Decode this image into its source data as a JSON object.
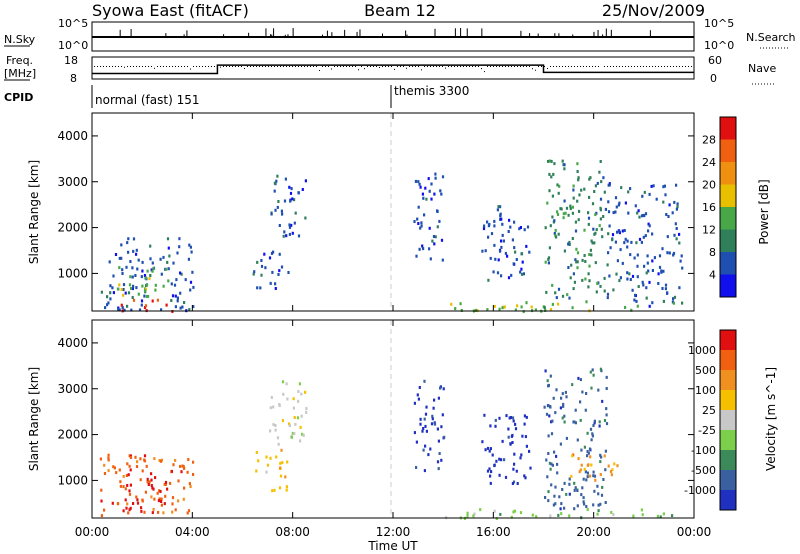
{
  "header": {
    "title": "Syowa East (fitACF)",
    "beam": "Beam 12",
    "date": "25/Nov/2009"
  },
  "strip": {
    "nsky_label": "N.Sky",
    "nsearch_label": "N.Search",
    "freq_label_1": "Freq.",
    "freq_label_2": "[MHz]",
    "nave_label": "Nave",
    "cpid_label": "CPID",
    "nsky_ticks": [
      "10^5",
      "10^0"
    ],
    "nsearch_ticks": [
      "10^5",
      "10^0"
    ],
    "freq_ticks": [
      "18",
      "8"
    ],
    "nave_ticks": [
      "60",
      "0"
    ],
    "cpid_segments": [
      {
        "label": "normal (fast) 151",
        "start_hour": 0
      },
      {
        "label": "themis 3300",
        "start_hour": 12
      }
    ],
    "freq_steps": [
      {
        "from_hour": 0,
        "to_hour": 5,
        "value": 10.5
      },
      {
        "from_hour": 5,
        "to_hour": 18,
        "value": 14.3
      },
      {
        "from_hour": 18,
        "to_hour": 24,
        "value": 11.0
      }
    ]
  },
  "colors": {
    "power": [
      "#1010ee",
      "#1f4fb0",
      "#2f7f5a",
      "#48a848",
      "#e8c000",
      "#f09010",
      "#f06010",
      "#e01010"
    ],
    "velocity": [
      "#2030c0",
      "#3a60a0",
      "#3c8a5a",
      "#7ccf4a",
      "#c8c8c8",
      "#f6c000",
      "#f09020",
      "#f06010",
      "#e01010"
    ],
    "grid": "#cccccc"
  },
  "chart_data": [
    {
      "type": "heatmap",
      "title": "",
      "xlabel": "",
      "ylabel": "Slant Range [km]",
      "x_range_hours": [
        0,
        24
      ],
      "ylim": [
        180,
        4500
      ],
      "y_ticks": [
        "1000",
        "2000",
        "3000",
        "4000"
      ],
      "colorbar_label": "Power [dB]",
      "colorbar_ticks": [
        "4",
        "8",
        "12",
        "16",
        "20",
        "24",
        "28"
      ],
      "scatter_regions": [
        {
          "x0": 0.3,
          "x1": 4.0,
          "y0": 200,
          "y1": 1800,
          "level": 1
        },
        {
          "x0": 1.0,
          "x1": 3.2,
          "y0": 200,
          "y1": 450,
          "level": 7
        },
        {
          "x0": 0.8,
          "x1": 3.0,
          "y0": 500,
          "y1": 1200,
          "level": 3
        },
        {
          "x0": 6.3,
          "x1": 7.8,
          "y0": 700,
          "y1": 1500,
          "level": 1
        },
        {
          "x0": 7.0,
          "x1": 8.5,
          "y0": 1800,
          "y1": 3200,
          "level": 1
        },
        {
          "x0": 12.8,
          "x1": 14.0,
          "y0": 1200,
          "y1": 3200,
          "level": 1
        },
        {
          "x0": 15.5,
          "x1": 17.5,
          "y0": 800,
          "y1": 2500,
          "level": 1
        },
        {
          "x0": 18.0,
          "x1": 20.5,
          "y0": 400,
          "y1": 3500,
          "level": 2
        },
        {
          "x0": 20.5,
          "x1": 23.5,
          "y0": 300,
          "y1": 3000,
          "level": 1
        },
        {
          "x0": 14.0,
          "x1": 23.5,
          "y0": 200,
          "y1": 400,
          "level": 3
        }
      ]
    },
    {
      "type": "heatmap",
      "title": "",
      "xlabel": "Time UT",
      "ylabel": "Slant Range [km]",
      "x_range_hours": [
        0,
        24
      ],
      "x_ticks": [
        "00:00",
        "04:00",
        "08:00",
        "12:00",
        "16:00",
        "20:00",
        "00:00"
      ],
      "ylim": [
        180,
        4500
      ],
      "y_ticks": [
        "1000",
        "2000",
        "3000",
        "4000"
      ],
      "colorbar_label": "Velocity [m s^-1]",
      "colorbar_ticks": [
        "1000",
        "500",
        "100",
        "25",
        "-25",
        "-100",
        "-500",
        "-1000"
      ],
      "scatter_regions": [
        {
          "x0": 0.3,
          "x1": 4.0,
          "y0": 200,
          "y1": 1600,
          "level": 7
        },
        {
          "x0": 1.2,
          "x1": 3.0,
          "y0": 300,
          "y1": 1200,
          "level": 8
        },
        {
          "x0": 6.5,
          "x1": 7.8,
          "y0": 800,
          "y1": 1700,
          "level": 5
        },
        {
          "x0": 7.0,
          "x1": 8.6,
          "y0": 1800,
          "y1": 3200,
          "level": 4
        },
        {
          "x0": 12.8,
          "x1": 14.0,
          "y0": 1200,
          "y1": 3200,
          "level": 0
        },
        {
          "x0": 15.5,
          "x1": 17.5,
          "y0": 900,
          "y1": 2500,
          "level": 0
        },
        {
          "x0": 18.0,
          "x1": 20.5,
          "y0": 400,
          "y1": 3500,
          "level": 1
        },
        {
          "x0": 19.0,
          "x1": 21.0,
          "y0": 1000,
          "y1": 1600,
          "level": 6
        },
        {
          "x0": 14.0,
          "x1": 23.5,
          "y0": 200,
          "y1": 400,
          "level": 3
        }
      ]
    }
  ]
}
